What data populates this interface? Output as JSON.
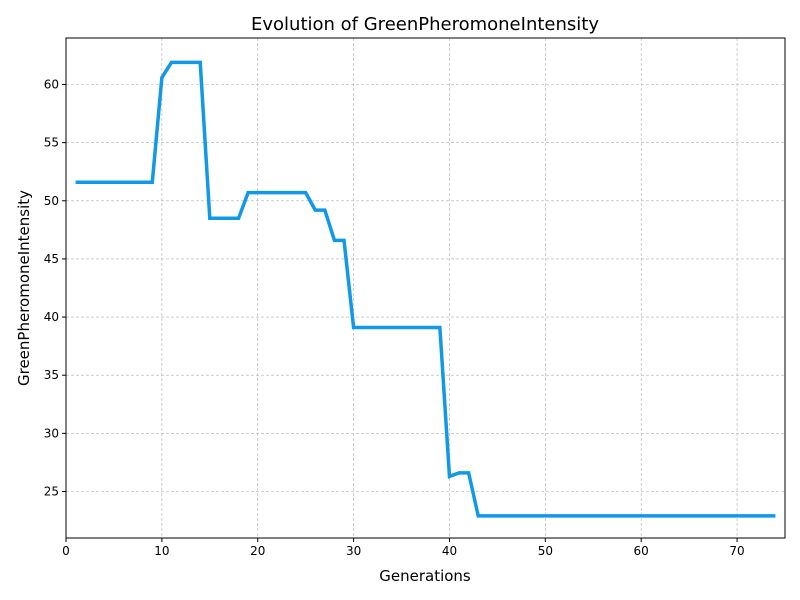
{
  "chart_data": {
    "type": "line",
    "title": "Evolution of GreenPheromoneIntensity",
    "xlabel": "Generations",
    "ylabel": "GreenPheromoneIntensity",
    "xlim": [
      0,
      75
    ],
    "ylim": [
      21,
      64
    ],
    "xticks": [
      0,
      10,
      20,
      30,
      40,
      50,
      60,
      70
    ],
    "yticks": [
      25,
      30,
      35,
      40,
      45,
      50,
      55,
      60
    ],
    "grid": true,
    "series": [
      {
        "color": "#1199e8",
        "x": [
          1,
          2,
          3,
          4,
          5,
          6,
          7,
          8,
          9,
          10,
          11,
          12,
          13,
          14,
          15,
          16,
          17,
          18,
          19,
          20,
          21,
          22,
          23,
          24,
          25,
          26,
          27,
          28,
          29,
          30,
          31,
          32,
          33,
          34,
          35,
          36,
          37,
          38,
          39,
          40,
          41,
          42,
          43,
          44,
          45,
          46,
          47,
          48,
          49,
          50,
          51,
          52,
          53,
          54,
          55,
          56,
          57,
          58,
          59,
          60,
          61,
          62,
          63,
          64,
          65,
          66,
          67,
          68,
          69,
          70,
          71,
          72,
          73,
          74
        ],
        "y": [
          51.6,
          51.6,
          51.6,
          51.6,
          51.6,
          51.6,
          51.6,
          51.6,
          51.6,
          60.6,
          61.9,
          61.9,
          61.9,
          61.9,
          48.5,
          48.5,
          48.5,
          48.5,
          50.7,
          50.7,
          50.7,
          50.7,
          50.7,
          50.7,
          50.7,
          49.2,
          49.2,
          46.6,
          46.6,
          39.1,
          39.1,
          39.1,
          39.1,
          39.1,
          39.1,
          39.1,
          39.1,
          39.1,
          39.1,
          26.3,
          26.6,
          26.6,
          22.9,
          22.9,
          22.9,
          22.9,
          22.9,
          22.9,
          22.9,
          22.9,
          22.9,
          22.9,
          22.9,
          22.9,
          22.9,
          22.9,
          22.9,
          22.9,
          22.9,
          22.9,
          22.9,
          22.9,
          22.9,
          22.9,
          22.9,
          22.9,
          22.9,
          22.9,
          22.9,
          22.9,
          22.9,
          22.9,
          22.9,
          22.9
        ]
      }
    ]
  }
}
